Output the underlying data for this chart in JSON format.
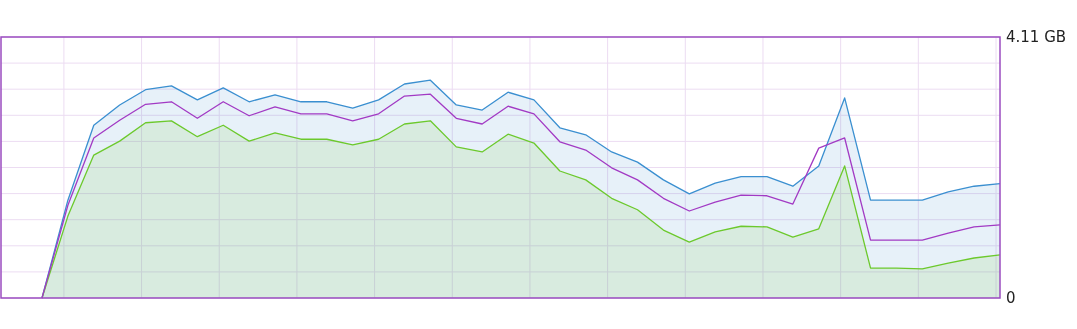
{
  "chart_data": {
    "type": "area",
    "categories": [
      null,
      null,
      null,
      null,
      null,
      null,
      null,
      null,
      null,
      null,
      null,
      null,
      null,
      null,
      null,
      null,
      null,
      null,
      null,
      null,
      null,
      null,
      null,
      null,
      null,
      null,
      null,
      null,
      null,
      null,
      null,
      null,
      null,
      null,
      null,
      null,
      null,
      null
    ],
    "ylim": [
      0,
      4.11
    ],
    "yticks": [
      {
        "value": 0,
        "label": "0"
      },
      {
        "value": 0.411,
        "label": null
      },
      {
        "value": 0.822,
        "label": null
      },
      {
        "value": 1.233,
        "label": null
      },
      {
        "value": 1.644,
        "label": null
      },
      {
        "value": 2.055,
        "label": null
      },
      {
        "value": 2.466,
        "label": null
      },
      {
        "value": 2.877,
        "label": null
      },
      {
        "value": 3.288,
        "label": null
      },
      {
        "value": 3.699,
        "label": null
      },
      {
        "value": 4.11,
        "label": "4.11 GB"
      }
    ],
    "grid": true,
    "series": [
      {
        "color": "#3a8fd0",
        "values": [
          0,
          1.54,
          2.72,
          3.04,
          3.28,
          3.34,
          3.12,
          3.31,
          3.09,
          3.2,
          3.09,
          3.09,
          2.99,
          3.12,
          3.37,
          3.43,
          3.04,
          2.96,
          3.24,
          3.12,
          2.68,
          2.57,
          2.3,
          2.14,
          1.86,
          1.64,
          1.81,
          1.91,
          1.91,
          1.76,
          2.08,
          3.15,
          1.54,
          1.54,
          1.54,
          1.67,
          1.76,
          1.8
        ]
      },
      {
        "color": "#6cc92c",
        "values": [
          0,
          1.29,
          2.25,
          2.47,
          2.76,
          2.79,
          2.54,
          2.72,
          2.47,
          2.6,
          2.5,
          2.5,
          2.41,
          2.5,
          2.74,
          2.79,
          2.38,
          2.3,
          2.58,
          2.44,
          2.0,
          1.86,
          1.57,
          1.39,
          1.07,
          0.88,
          1.04,
          1.13,
          1.12,
          0.96,
          1.09,
          2.08,
          0.47,
          0.47,
          0.46,
          0.55,
          0.63,
          0.68
        ]
      },
      {
        "type": "line",
        "color": "#a23ac4",
        "values": [
          0,
          1.46,
          2.52,
          2.8,
          3.05,
          3.09,
          2.83,
          3.09,
          2.87,
          3.01,
          2.9,
          2.9,
          2.79,
          2.9,
          3.18,
          3.21,
          2.83,
          2.74,
          3.02,
          2.9,
          2.46,
          2.33,
          2.05,
          1.86,
          1.57,
          1.37,
          1.51,
          1.62,
          1.61,
          1.48,
          2.36,
          2.52,
          0.91,
          0.91,
          0.91,
          1.02,
          1.12,
          1.15
        ]
      }
    ]
  }
}
